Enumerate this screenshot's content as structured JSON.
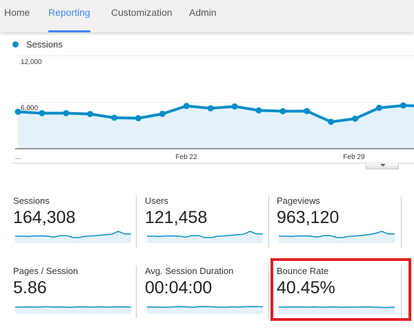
{
  "tabs": [
    {
      "label": "Home"
    },
    {
      "label": "Reporting",
      "active": true
    },
    {
      "label": "Customization"
    },
    {
      "label": "Admin"
    }
  ],
  "legend": {
    "label": "Sessions",
    "color": "#058dc7"
  },
  "chart_data": {
    "type": "area",
    "series": [
      {
        "name": "Sessions",
        "values": [
          4770,
          4590,
          4590,
          4480,
          4000,
          3940,
          4500,
          5520,
          5220,
          5460,
          4950,
          4840,
          4860,
          3470,
          3880,
          5280,
          5580,
          5490
        ]
      }
    ],
    "ylim": [
      0,
      12000
    ],
    "yticks": [
      "12,000",
      "6,000"
    ],
    "xticks": [
      {
        "label": "...",
        "index": 0
      },
      {
        "label": "Feb 22",
        "index": 7
      },
      {
        "label": "Feb 29",
        "index": 14
      }
    ],
    "color": "#058dc7",
    "fill": "#e4f1fa",
    "grid": true
  },
  "metrics": [
    {
      "label": "Sessions",
      "value": "164,308",
      "spark": [
        5,
        5,
        4.8,
        5.2,
        5.2,
        5,
        4.3,
        5.4,
        5.4,
        4,
        4,
        5,
        5.2,
        5.6,
        6,
        6.4,
        8.5,
        6.6,
        6.7
      ]
    },
    {
      "label": "Users",
      "value": "121,458",
      "spark": [
        5,
        5,
        4.8,
        5.2,
        5.2,
        5,
        4.3,
        5.4,
        5.4,
        4,
        4,
        5,
        5.2,
        5.6,
        6,
        6.4,
        8.5,
        6.6,
        6.7
      ]
    },
    {
      "label": "Pageviews",
      "value": "963,120",
      "spark": [
        5,
        5,
        4.8,
        5.2,
        5.2,
        5,
        4.3,
        5.4,
        5.4,
        4,
        4,
        5,
        5.2,
        5.6,
        6.2,
        7,
        8.5,
        6.6,
        6.6
      ]
    },
    {
      "label": "Pages / Session",
      "value": "5.86",
      "spark": [
        5,
        5,
        5.1,
        5,
        5.3,
        5,
        5.1,
        4.8,
        5.2,
        5.1,
        5,
        5.2,
        5,
        5.1,
        5.1,
        5
      ]
    },
    {
      "label": "Avg. Session Duration",
      "value": "00:04:00",
      "spark": [
        5,
        5,
        4.9,
        5,
        5.3,
        5.2,
        4.9,
        5.4,
        5.3,
        5,
        4.9,
        5.2,
        5,
        5.3,
        5.4,
        5.2
      ]
    },
    {
      "label": "Bounce Rate",
      "value": "40.45%",
      "spark": [
        5,
        5,
        5.1,
        5,
        5.1,
        4.9,
        5.1,
        4.9,
        5,
        5,
        5.1,
        4.9,
        4.7,
        4.9
      ]
    }
  ],
  "highlight": {
    "color": "#e31e25",
    "metric": "Bounce Rate"
  }
}
